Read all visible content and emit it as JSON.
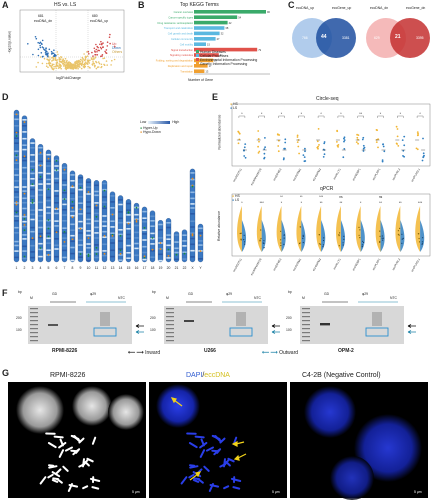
{
  "panels": {
    "A": {
      "letter": "A",
      "title": "HS vs. LS",
      "xlabel": "log2FoldChange",
      "ylabel": "-log10(p.value)",
      "left_count_label": "681",
      "left_sub_label": "eccDNA_dn",
      "right_count_label": "680",
      "right_sub_label": "eccDNA_up",
      "legend": [
        "Up",
        "Down",
        "Others"
      ],
      "colors": {
        "up": "#d24b4b",
        "down": "#2e6fb5",
        "others": "#e9c46a"
      }
    },
    "B": {
      "letter": "B",
      "title": "Top KEGG Terms",
      "xlabel": "Number of Gene",
      "bars": [
        {
          "label": "Cancer overview",
          "value": 90,
          "group": "Human Diseases"
        },
        {
          "label": "Cancer specific types",
          "value": 54,
          "group": "Human Diseases"
        },
        {
          "label": "Drug resistance: antineoplastic",
          "value": 42,
          "group": "Human Diseases"
        },
        {
          "label": "Transport and catabolism",
          "value": 38,
          "group": "Cellular Processes"
        },
        {
          "label": "Cell growth and death",
          "value": 32,
          "group": "Cellular Processes"
        },
        {
          "label": "Cellular community",
          "value": 27,
          "group": "Cellular Processes"
        },
        {
          "label": "Cell motility",
          "value": 15,
          "group": "Cellular Processes"
        },
        {
          "label": "Signal transduction",
          "value": 79,
          "group": "Environmental Information Processing"
        },
        {
          "label": "Signaling molecules",
          "value": 31,
          "group": "Environmental Information Processing"
        },
        {
          "label": "Folding, sorting and degradation",
          "value": 24,
          "group": "Genetic Information Processing"
        },
        {
          "label": "Replication and repair",
          "value": 17,
          "group": "Genetic Information Processing"
        },
        {
          "label": "Translation",
          "value": 13,
          "group": "Genetic Information Processing"
        }
      ],
      "legend": [
        {
          "label": "Human Diseases",
          "color": "#3aaa6a"
        },
        {
          "label": "Cellular Processes",
          "color": "#5bb8e0"
        },
        {
          "label": "Environmental Information Processing",
          "color": "#e0524a"
        },
        {
          "label": "Genetic Information Processing",
          "color": "#f0a030"
        }
      ]
    },
    "C": {
      "letter": "C",
      "venn1": {
        "left_label": "eccDNA_up",
        "right_label": "eccGene_up",
        "left_value": "766",
        "center_value": "44",
        "right_value": "3381"
      },
      "venn2": {
        "left_label": "eccDNA_dn",
        "right_label": "eccGene_dn",
        "left_value": "629",
        "center_value": "21",
        "right_value": "3395"
      }
    },
    "D": {
      "letter": "D",
      "legend_low": "Low",
      "legend_high": "High",
      "legend_up": "Hyper-Up",
      "legend_down": "Hypo-Down",
      "chromosomes": [
        "1",
        "2",
        "3",
        "4",
        "5",
        "6",
        "7",
        "8",
        "9",
        "10",
        "11",
        "12",
        "13",
        "14",
        "15",
        "16",
        "17",
        "18",
        "19",
        "20",
        "21",
        "22",
        "X",
        "Y"
      ]
    },
    "E": {
      "letter": "E",
      "top_title": "Circle-seq",
      "top_ylabel": "Normalized abundance",
      "bottom_title": "qPCR",
      "bottom_ylabel": "Relative abundance",
      "legend": [
        {
          "label": "HS",
          "color": "#f2b632"
        },
        {
          "label": "LS",
          "color": "#2f7fc1"
        }
      ],
      "genes": [
        "eccACOT11",
        "eccARHGEF26",
        "eccEIF4E2",
        "eccFOXM1",
        "eccGSPM2",
        "eccKLLT1",
        "eccNCBP1",
        "eccPLRP1",
        "eccPVRL2",
        "eccPLAGL1"
      ],
      "top_sig": [
        "*",
        "*",
        "*",
        "*",
        "*",
        "*",
        "**",
        "*",
        "*",
        "*"
      ],
      "bottom_sig": [
        "*",
        "***",
        "*",
        "*",
        "**",
        "**",
        "*",
        "**",
        "**",
        "***"
      ],
      "bottom_sig_extra": [
        "",
        "",
        "**",
        "**",
        "***",
        "ns",
        "",
        "ns",
        "",
        ""
      ]
    },
    "F": {
      "letter": "F",
      "gels": [
        {
          "cell_line": "RPMI-8226",
          "M": "M",
          "GD": "GD",
          "phi": "φ29",
          "NTC": "NTC"
        },
        {
          "cell_line": "U266",
          "M": "M",
          "GD": "GD",
          "phi": "φ29",
          "NTC": "NTC"
        },
        {
          "cell_line": "OPM-2",
          "M": "M",
          "GD": "GD",
          "phi": "φ29",
          "NTC": "NTC"
        }
      ],
      "bp_label": "bp",
      "bp_200": "200",
      "bp_100": "100",
      "inward_label": "Inward",
      "outward_label": "Outward"
    },
    "G": {
      "letter": "G",
      "title1": "RPMI-8226",
      "title2_dapi": "DAPI",
      "title2_slash": "/",
      "title2_ecc": "eccDNA",
      "title3": "C4-2B (Negative Control)",
      "scale": "5 μm"
    }
  }
}
